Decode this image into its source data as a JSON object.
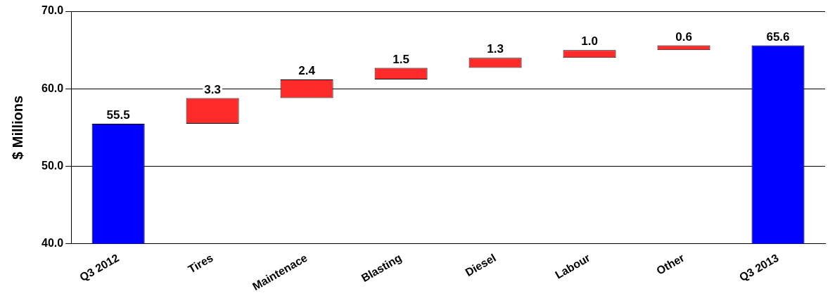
{
  "chart_data": {
    "type": "bar",
    "ylabel": "$ Millions",
    "categories": [
      "Q3 2012",
      "Tires",
      "Maintenace",
      "Blasting",
      "Diesel",
      "Labour",
      "Other",
      "Q3 2013"
    ],
    "values": [
      55.5,
      3.3,
      2.4,
      1.5,
      1.3,
      1.0,
      0.6,
      65.6
    ],
    "base": [
      0,
      55.5,
      58.8,
      61.2,
      62.7,
      64.0,
      65.0,
      0
    ],
    "colors": [
      "#0000ff",
      "#ff2a2a",
      "#ff2a2a",
      "#ff2a2a",
      "#ff2a2a",
      "#ff2a2a",
      "#ff2a2a",
      "#0000ff"
    ],
    "ylim": [
      40,
      70
    ],
    "yticks": [
      {
        "value": 40,
        "label": "40.0"
      },
      {
        "value": 50,
        "label": "50.0"
      },
      {
        "value": 60,
        "label": "60.0"
      },
      {
        "value": 70,
        "label": "70.0"
      }
    ],
    "value_labels": [
      "55.5",
      "3.3",
      "2.4",
      "1.5",
      "1.3",
      "1.0",
      "0.6",
      "65.6"
    ],
    "grid": "y",
    "legend": false
  }
}
